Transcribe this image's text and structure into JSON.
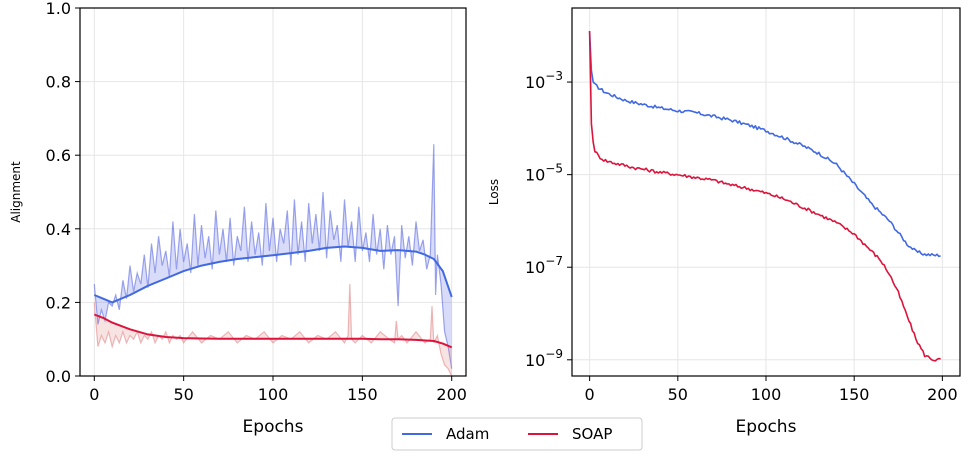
{
  "chart_data": [
    {
      "type": "line",
      "panel": "left",
      "title": "",
      "xlabel": "Epochs",
      "ylabel": "Alignment",
      "xlim": [
        -8,
        208
      ],
      "ylim": [
        0,
        1.0
      ],
      "xticks": [
        0,
        50,
        100,
        150,
        200
      ],
      "yticks": [
        0.0,
        0.2,
        0.4,
        0.6,
        0.8,
        1.0
      ],
      "ytick_labels": [
        "0.0",
        "0.2",
        "0.4",
        "0.6",
        "0.8",
        "1.0"
      ],
      "grid": true,
      "series": [
        {
          "name": "Adam",
          "kind": "smoothed",
          "color": "#4169e1",
          "x": [
            0,
            5,
            10,
            20,
            30,
            40,
            50,
            60,
            70,
            80,
            90,
            100,
            110,
            120,
            130,
            140,
            150,
            160,
            170,
            180,
            185,
            190,
            195,
            200
          ],
          "y": [
            0.22,
            0.21,
            0.2,
            0.22,
            0.245,
            0.265,
            0.285,
            0.3,
            0.31,
            0.318,
            0.323,
            0.328,
            0.334,
            0.34,
            0.348,
            0.352,
            0.348,
            0.34,
            0.342,
            0.338,
            0.33,
            0.318,
            0.285,
            0.215
          ]
        },
        {
          "name": "Adam",
          "kind": "raw",
          "color": "#5060e0",
          "x": [
            0,
            2,
            4,
            6,
            8,
            10,
            12,
            14,
            16,
            18,
            20,
            22,
            24,
            26,
            28,
            30,
            32,
            34,
            36,
            38,
            40,
            42,
            44,
            46,
            48,
            50,
            52,
            54,
            56,
            58,
            60,
            62,
            64,
            66,
            68,
            70,
            72,
            74,
            76,
            78,
            80,
            82,
            84,
            86,
            88,
            90,
            92,
            94,
            96,
            98,
            100,
            102,
            104,
            106,
            108,
            110,
            112,
            114,
            116,
            118,
            120,
            122,
            124,
            126,
            128,
            130,
            132,
            134,
            136,
            138,
            140,
            142,
            144,
            146,
            148,
            150,
            152,
            154,
            156,
            158,
            160,
            162,
            164,
            166,
            168,
            170,
            172,
            174,
            176,
            178,
            180,
            182,
            184,
            186,
            188,
            190,
            191,
            192,
            194,
            196,
            198,
            200
          ],
          "y": [
            0.25,
            0.14,
            0.18,
            0.15,
            0.2,
            0.19,
            0.22,
            0.18,
            0.26,
            0.21,
            0.3,
            0.23,
            0.28,
            0.25,
            0.33,
            0.24,
            0.36,
            0.28,
            0.38,
            0.3,
            0.34,
            0.27,
            0.42,
            0.29,
            0.4,
            0.31,
            0.36,
            0.28,
            0.44,
            0.3,
            0.41,
            0.32,
            0.38,
            0.29,
            0.45,
            0.33,
            0.4,
            0.31,
            0.43,
            0.3,
            0.38,
            0.34,
            0.46,
            0.31,
            0.42,
            0.33,
            0.39,
            0.3,
            0.47,
            0.34,
            0.43,
            0.31,
            0.4,
            0.36,
            0.45,
            0.3,
            0.48,
            0.33,
            0.42,
            0.31,
            0.47,
            0.36,
            0.44,
            0.34,
            0.5,
            0.32,
            0.45,
            0.37,
            0.41,
            0.31,
            0.48,
            0.35,
            0.42,
            0.31,
            0.46,
            0.34,
            0.39,
            0.31,
            0.44,
            0.33,
            0.4,
            0.29,
            0.41,
            0.33,
            0.38,
            0.19,
            0.41,
            0.32,
            0.38,
            0.3,
            0.42,
            0.34,
            0.37,
            0.29,
            0.33,
            0.63,
            0.22,
            0.33,
            0.25,
            0.12,
            0.08,
            0.02
          ]
        },
        {
          "name": "SOAP",
          "kind": "smoothed",
          "color": "#dc143c",
          "x": [
            0,
            5,
            10,
            20,
            30,
            40,
            50,
            60,
            70,
            80,
            90,
            100,
            110,
            120,
            130,
            140,
            150,
            160,
            170,
            180,
            190,
            195,
            200
          ],
          "y": [
            0.167,
            0.158,
            0.145,
            0.127,
            0.113,
            0.106,
            0.103,
            0.102,
            0.101,
            0.101,
            0.101,
            0.101,
            0.101,
            0.101,
            0.101,
            0.101,
            0.101,
            0.1,
            0.1,
            0.098,
            0.095,
            0.088,
            0.078
          ]
        },
        {
          "name": "SOAP",
          "kind": "raw",
          "color": "#e08080",
          "x": [
            0,
            2,
            4,
            6,
            8,
            10,
            12,
            14,
            16,
            18,
            20,
            22,
            24,
            26,
            28,
            30,
            32,
            34,
            36,
            38,
            40,
            42,
            44,
            46,
            48,
            50,
            55,
            60,
            65,
            70,
            75,
            80,
            85,
            90,
            95,
            100,
            105,
            110,
            115,
            120,
            125,
            130,
            135,
            140,
            142,
            143,
            144,
            146,
            150,
            155,
            160,
            165,
            168,
            169,
            170,
            172,
            175,
            180,
            185,
            188,
            189,
            190,
            192,
            194,
            196,
            198,
            200
          ],
          "y": [
            0.2,
            0.08,
            0.11,
            0.09,
            0.12,
            0.08,
            0.11,
            0.09,
            0.12,
            0.09,
            0.11,
            0.1,
            0.12,
            0.09,
            0.11,
            0.1,
            0.12,
            0.09,
            0.11,
            0.1,
            0.12,
            0.09,
            0.11,
            0.1,
            0.11,
            0.09,
            0.12,
            0.09,
            0.11,
            0.1,
            0.12,
            0.09,
            0.11,
            0.1,
            0.12,
            0.09,
            0.11,
            0.1,
            0.12,
            0.09,
            0.11,
            0.1,
            0.12,
            0.09,
            0.11,
            0.25,
            0.1,
            0.09,
            0.11,
            0.09,
            0.12,
            0.1,
            0.09,
            0.15,
            0.1,
            0.11,
            0.09,
            0.12,
            0.09,
            0.1,
            0.19,
            0.09,
            0.11,
            0.06,
            0.03,
            0.02,
            0.0
          ]
        }
      ]
    },
    {
      "type": "line",
      "panel": "right",
      "title": "",
      "xlabel": "Epochs",
      "ylabel": "Loss",
      "yscale": "log",
      "xlim": [
        -10,
        210
      ],
      "ylim_log10": [
        -9.35,
        -1.4
      ],
      "xticks": [
        0,
        50,
        100,
        150,
        200
      ],
      "yticks_log10": [
        -3,
        -5,
        -7,
        -9
      ],
      "ytick_base": "10",
      "ytick_exponents": [
        "−3",
        "−5",
        "−7",
        "−9"
      ],
      "grid": true,
      "series": [
        {
          "name": "Adam",
          "color": "#4169e1",
          "x": [
            0,
            1,
            2,
            3,
            5,
            8,
            10,
            15,
            20,
            25,
            30,
            40,
            50,
            60,
            70,
            80,
            90,
            100,
            110,
            120,
            130,
            140,
            150,
            160,
            170,
            180,
            185,
            190,
            195,
            200
          ],
          "log10_y": [
            -1.9,
            -2.75,
            -3.0,
            -3.06,
            -3.12,
            -3.2,
            -3.24,
            -3.32,
            -3.39,
            -3.44,
            -3.48,
            -3.56,
            -3.62,
            -3.66,
            -3.74,
            -3.82,
            -3.93,
            -4.05,
            -4.2,
            -4.36,
            -4.54,
            -4.78,
            -5.2,
            -5.64,
            -6.0,
            -6.5,
            -6.66,
            -6.72,
            -6.74,
            -6.74
          ]
        },
        {
          "name": "SOAP",
          "color": "#dc143c",
          "x": [
            0,
            1,
            2,
            3,
            5,
            8,
            10,
            15,
            20,
            25,
            30,
            40,
            50,
            60,
            70,
            80,
            90,
            100,
            110,
            120,
            130,
            140,
            150,
            160,
            165,
            170,
            175,
            180,
            185,
            190,
            195,
            200
          ],
          "log10_y": [
            -1.9,
            -3.9,
            -4.3,
            -4.48,
            -4.6,
            -4.68,
            -4.71,
            -4.76,
            -4.8,
            -4.85,
            -4.88,
            -4.95,
            -5.0,
            -5.06,
            -5.12,
            -5.22,
            -5.3,
            -5.4,
            -5.52,
            -5.69,
            -5.86,
            -6.04,
            -6.28,
            -6.66,
            -6.85,
            -7.15,
            -7.55,
            -8.05,
            -8.55,
            -8.9,
            -9.0,
            -9.0
          ]
        }
      ]
    }
  ],
  "legend": {
    "placement": "bottom-center",
    "entries": [
      {
        "label": "Adam",
        "color": "#4169e1"
      },
      {
        "label": "SOAP",
        "color": "#dc143c"
      }
    ]
  }
}
